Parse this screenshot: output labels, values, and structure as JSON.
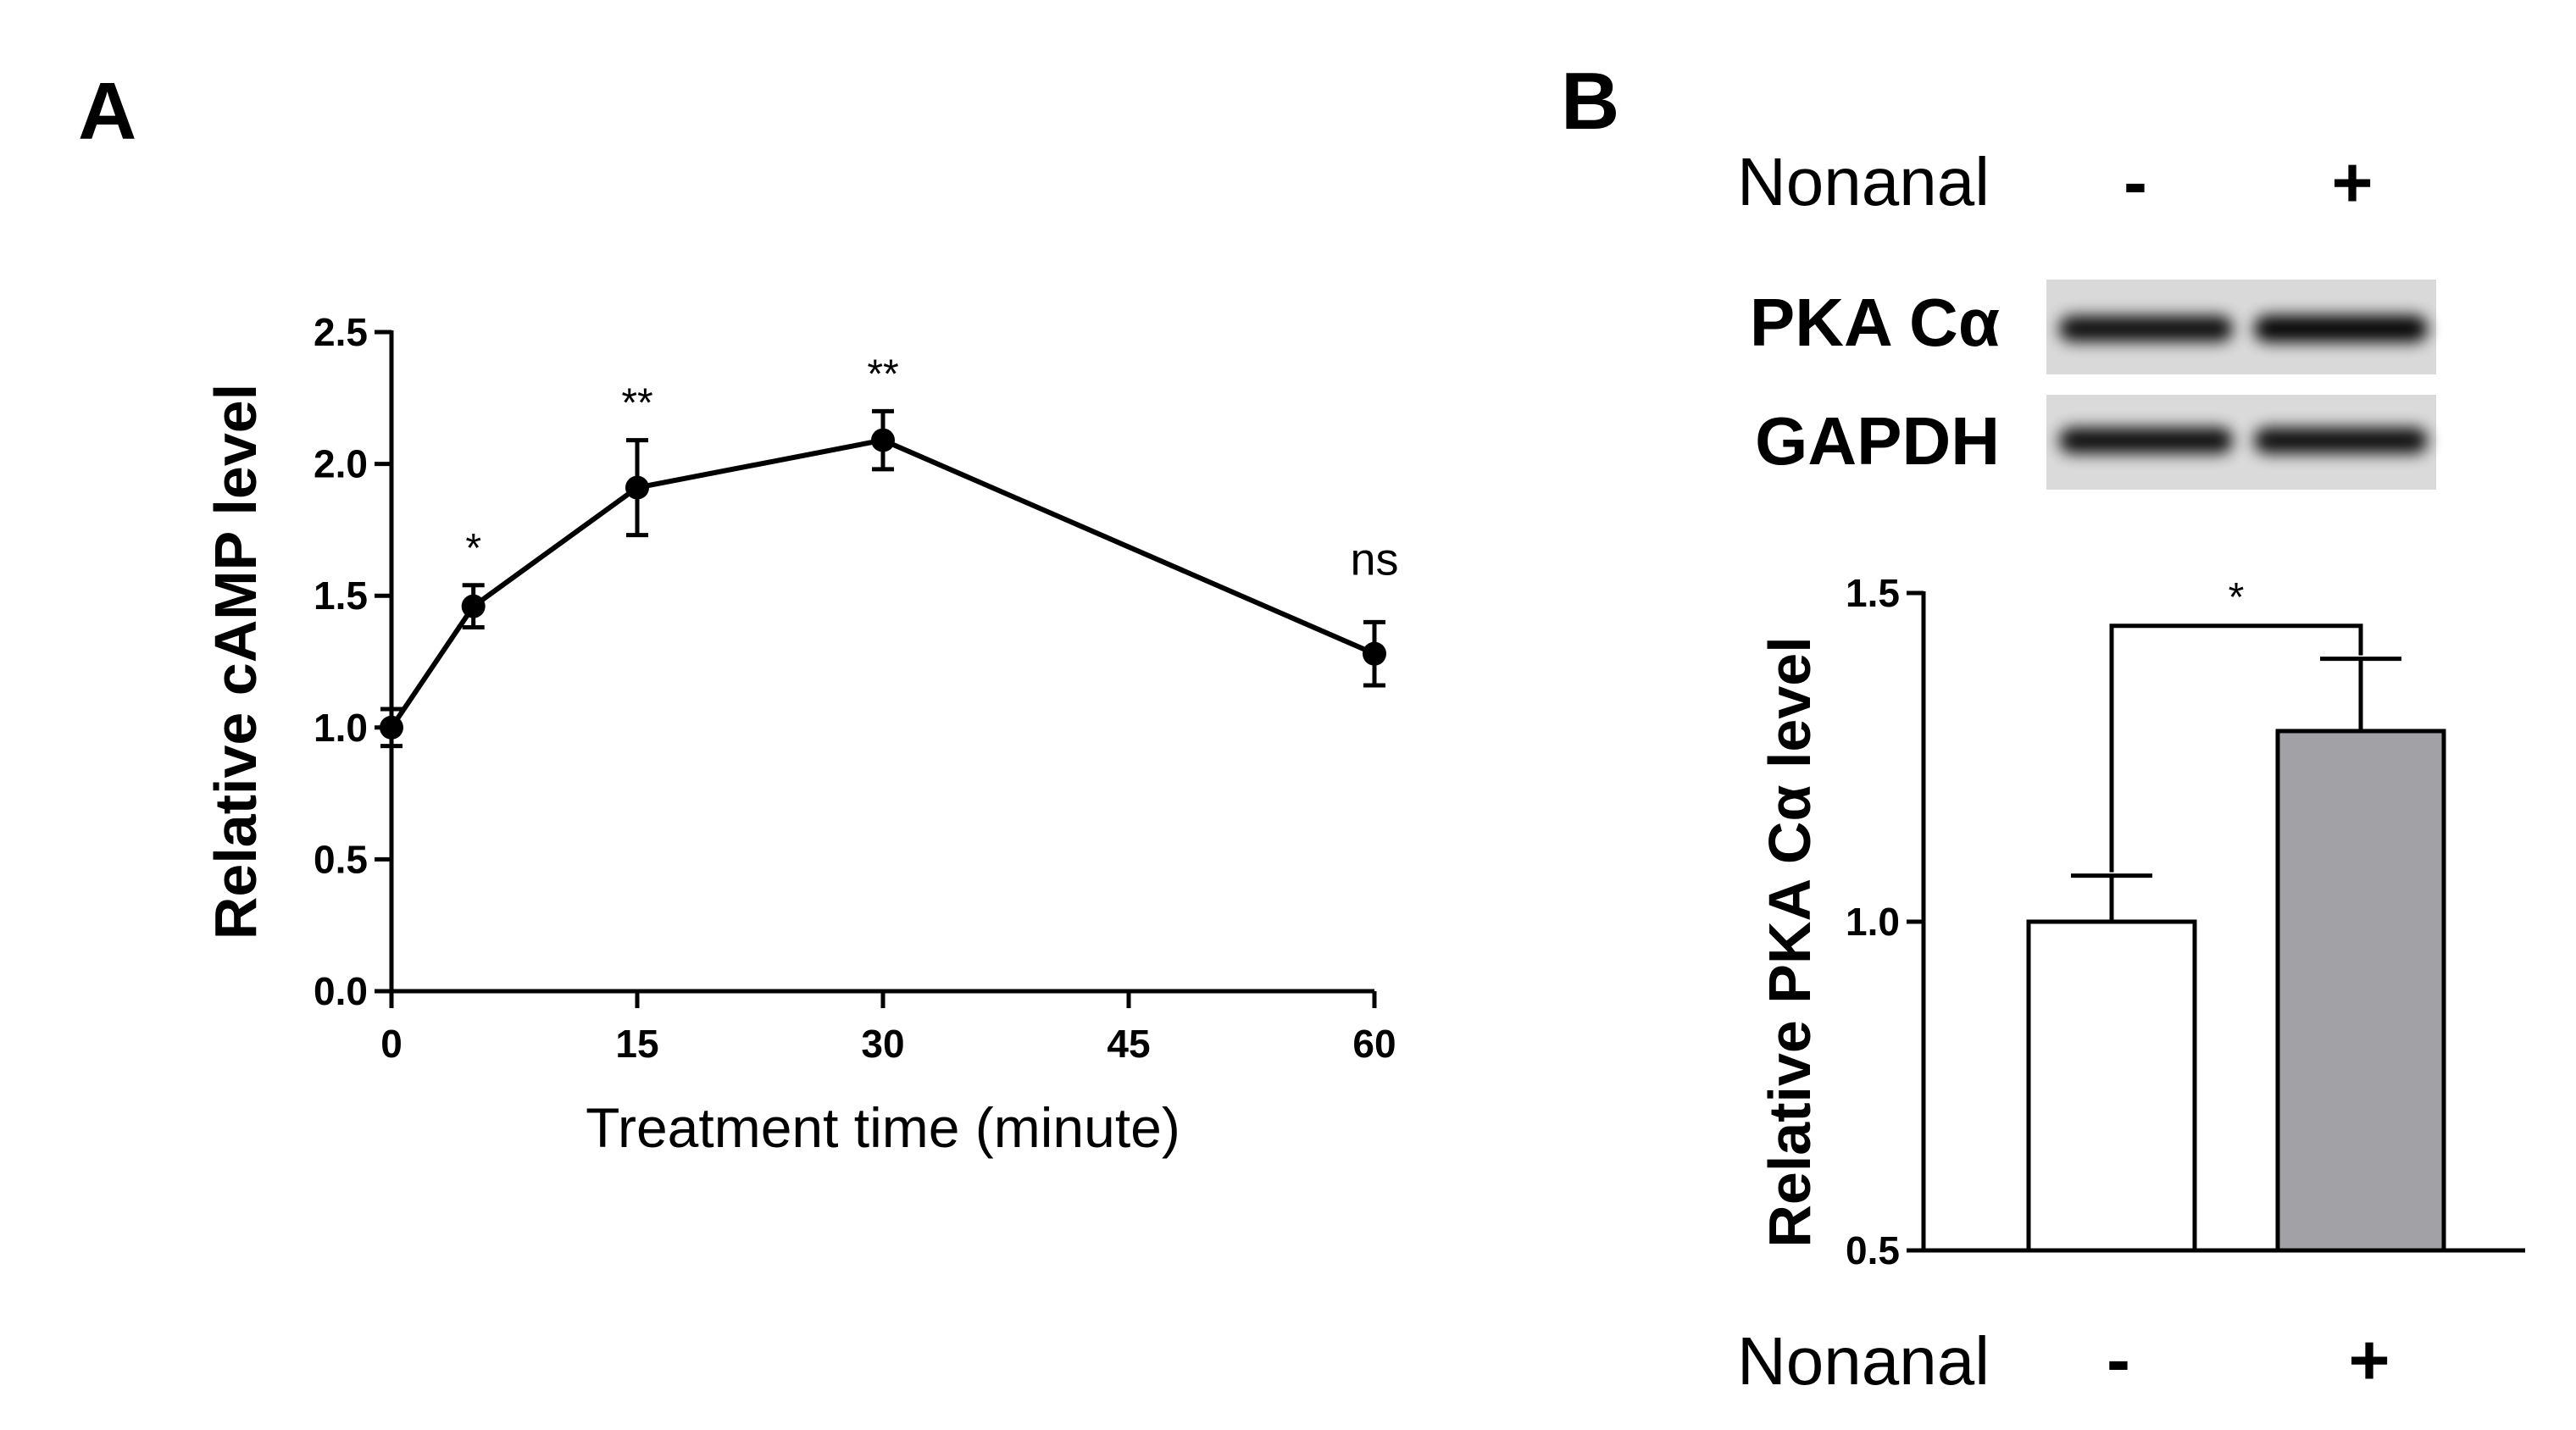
{
  "panels": {
    "a": {
      "label": "A"
    },
    "b": {
      "label": "B"
    }
  },
  "blot": {
    "treatment_label": "Nonanal",
    "treatment_minus": "-",
    "treatment_plus": "+",
    "rows": [
      "PKA Cα",
      "GAPDH"
    ],
    "band_intensity": [
      [
        0.85,
        0.95
      ],
      [
        0.85,
        0.85
      ]
    ]
  },
  "chart_data": [
    {
      "type": "line",
      "panel": "A",
      "x": [
        0,
        5,
        15,
        30,
        60
      ],
      "y": [
        1.0,
        1.46,
        1.91,
        2.09,
        1.28
      ],
      "error": [
        0.07,
        0.08,
        0.18,
        0.11,
        0.12
      ],
      "significance": [
        "",
        "*",
        "**",
        "**",
        "ns"
      ],
      "xlabel": "Treatment time (minute)",
      "ylabel": "Relative cAMP level",
      "xlim": [
        0,
        60
      ],
      "ylim": [
        0,
        2.5
      ],
      "xticks": [
        0,
        15,
        30,
        45,
        60
      ],
      "yticks": [
        0.0,
        0.5,
        1.0,
        1.5,
        2.0,
        2.5
      ],
      "xtick_labels": [
        "0",
        "15",
        "30",
        "45",
        "60"
      ],
      "ytick_labels": [
        "0.0",
        "0.5",
        "1.0",
        "1.5",
        "2.0",
        "2.5"
      ]
    },
    {
      "type": "bar",
      "panel": "B",
      "categories": [
        "-",
        "+"
      ],
      "values": [
        1.0,
        1.29
      ],
      "error": [
        0.07,
        0.11
      ],
      "colors": [
        "#ffffff",
        "#a2a2a6"
      ],
      "xlabel": "Nonanal",
      "ylabel": "Relative PKA Cα level",
      "ylim": [
        0.5,
        1.5
      ],
      "yticks": [
        0.5,
        1.0,
        1.5
      ],
      "ytick_labels": [
        "0.5",
        "1.0",
        "1.5"
      ],
      "significance": "*"
    }
  ]
}
